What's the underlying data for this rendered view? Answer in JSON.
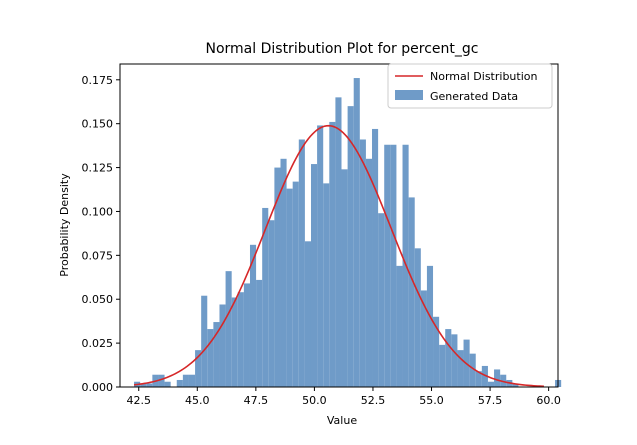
{
  "chart_data": {
    "type": "bar",
    "title": "Normal Distribution Plot for percent_gc",
    "xlabel": "Value",
    "ylabel": "Probability Density",
    "xlim": [
      41.7,
      60.4
    ],
    "ylim": [
      0,
      0.184
    ],
    "xticks": [
      "42.5",
      "45.0",
      "47.5",
      "50.0",
      "52.5",
      "55.0",
      "57.5",
      "60.0"
    ],
    "yticks": [
      "0.000",
      "0.025",
      "0.050",
      "0.075",
      "0.100",
      "0.125",
      "0.150",
      "0.175"
    ],
    "grid": false,
    "legend_position": "top-right",
    "histogram": {
      "name": "Generated Data",
      "color": "#6f9bc8",
      "bin_start": 42.3,
      "bin_width": 0.2605,
      "values": [
        0.003,
        0.002,
        0.002,
        0.007,
        0.007,
        0.003,
        0.0,
        0.004,
        0.007,
        0.007,
        0.021,
        0.052,
        0.033,
        0.037,
        0.047,
        0.066,
        0.051,
        0.054,
        0.059,
        0.081,
        0.061,
        0.102,
        0.095,
        0.125,
        0.13,
        0.113,
        0.117,
        0.141,
        0.083,
        0.127,
        0.149,
        0.116,
        0.151,
        0.165,
        0.124,
        0.16,
        0.176,
        0.141,
        0.13,
        0.147,
        0.099,
        0.138,
        0.138,
        0.069,
        0.138,
        0.108,
        0.079,
        0.055,
        0.069,
        0.04,
        0.024,
        0.033,
        0.03,
        0.021,
        0.027,
        0.019,
        0.009,
        0.012,
        0.003,
        0.01,
        0.007,
        0.004,
        0.002,
        0.0,
        0.0,
        0.0,
        0.0,
        0.0,
        0.0,
        0.004
      ]
    },
    "normal_curve": {
      "name": "Normal Distribution",
      "color": "#d62728",
      "mean": 50.6,
      "sd": 2.68,
      "x_range": [
        42.3,
        59.8
      ]
    }
  }
}
